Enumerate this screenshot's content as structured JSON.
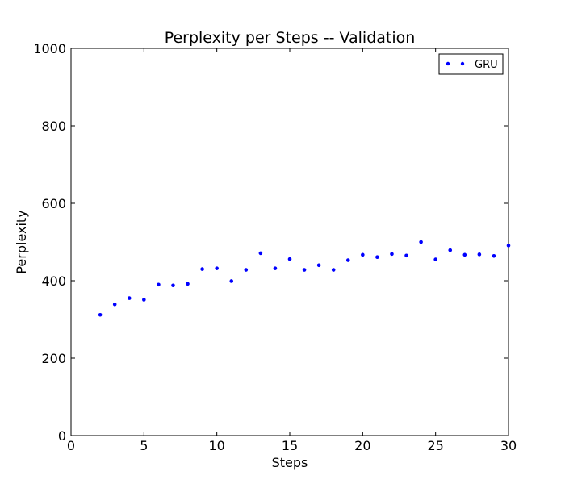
{
  "chart_data": {
    "type": "scatter",
    "title": "Perplexity per Steps -- Validation",
    "xlabel": "Steps",
    "ylabel": "Perplexity",
    "xlim": [
      0,
      30
    ],
    "ylim": [
      0,
      1000
    ],
    "xticks": [
      0,
      5,
      10,
      15,
      20,
      25,
      30
    ],
    "yticks": [
      0,
      200,
      400,
      600,
      800,
      1000
    ],
    "grid": false,
    "legend_position": "top-right",
    "series": [
      {
        "name": "GRU",
        "color": "#0000ff",
        "marker": "dot",
        "x": [
          2,
          3,
          4,
          5,
          6,
          7,
          8,
          9,
          10,
          11,
          12,
          13,
          14,
          15,
          16,
          17,
          18,
          19,
          20,
          21,
          22,
          23,
          24,
          25,
          26,
          27,
          28,
          29,
          30
        ],
        "y": [
          312,
          339,
          355,
          351,
          390,
          388,
          392,
          430,
          432,
          399,
          428,
          471,
          432,
          456,
          428,
          440,
          428,
          453,
          467,
          461,
          469,
          465,
          500,
          455,
          479,
          467,
          468,
          464,
          491
        ]
      }
    ]
  }
}
